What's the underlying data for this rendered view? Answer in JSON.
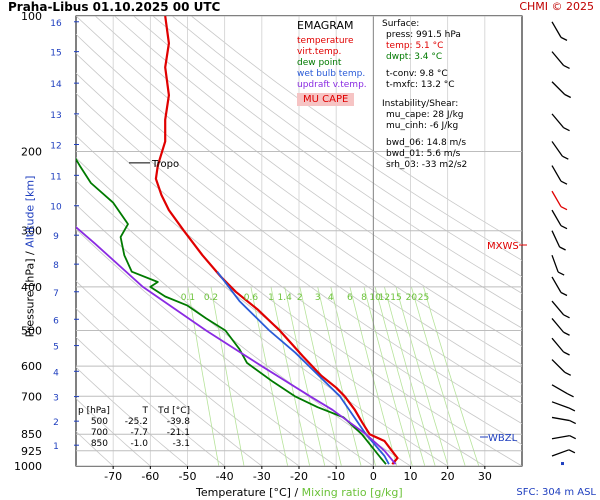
{
  "header": {
    "title": "Praha-Libus    01.10.2025 00 UTC",
    "credit": "CHMI © 2025"
  },
  "legend": {
    "title": "EMAGRAM",
    "items": [
      {
        "label": "temperature",
        "color": "#e00000"
      },
      {
        "label": "virt.temp.",
        "color": "#e00000"
      },
      {
        "label": "dew point",
        "color": "#007a00"
      },
      {
        "label": "wet bulb temp.",
        "color": "#2a5bd7"
      },
      {
        "label": "updraft v.temp.",
        "color": "#8a2be2"
      }
    ],
    "button": "MU CAPE"
  },
  "surface_info": {
    "heading": "Surface:",
    "press": "press: 991.5 hPa",
    "temp": "temp: 5.1 °C",
    "dwpt": "dwpt: 3.4 °C",
    "tconv": "t-conv: 9.8 °C",
    "tmxfc": "t-mxfc: 13.2 °C",
    "instab_heading": "Instability/Shear:",
    "mu_cape": "mu_cape: 28 J/kg",
    "mu_cinh": "mu_cinh: -6 J/kg",
    "bwd_06": "bwd_06: 14.8 m/s",
    "bwd_01": "bwd_01: 5.6 m/s",
    "srh_03": "srh_03: -33 m2/s2"
  },
  "table": {
    "header": [
      "p [hPa]",
      "T",
      "Td [°C]"
    ],
    "rows": [
      [
        "500",
        "-25.2",
        "-39.8"
      ],
      [
        "700",
        "-7.7",
        "-21.1"
      ],
      [
        "850",
        "-1.0",
        "-3.1"
      ]
    ]
  },
  "annotations": {
    "tropo": "Tropo",
    "mxws": "MXWS",
    "wbzl": "WBZL",
    "sfc": "SFC: 304 m ASL"
  },
  "axes": {
    "xlabel_temp": "Temperature [°C]",
    "xlabel_sep": " / ",
    "xlabel_mix": "Mixing ratio [g/kg]",
    "ylabel_p": "Pressure [hPa]",
    "ylabel_sep": " / ",
    "ylabel_alt": "Altitude [km]"
  },
  "chart_data": {
    "type": "line",
    "xlim": [
      -80,
      40
    ],
    "ylim_pressure": [
      1000,
      100
    ],
    "y_scale": "log",
    "x_ticks": [
      -70,
      -60,
      -50,
      -40,
      -30,
      -20,
      -10,
      0,
      10,
      20,
      30
    ],
    "pressure_ticks": [
      100,
      200,
      300,
      400,
      500,
      600,
      700,
      850,
      925,
      1000
    ],
    "altitude_ticks_km": [
      1,
      2,
      3,
      4,
      5,
      6,
      7,
      8,
      9,
      10,
      11,
      12,
      13,
      14,
      15,
      16
    ],
    "mixing_ratio_labels": [
      "0.1",
      "0.2",
      "0.6",
      "1",
      "1.4",
      "2",
      "3",
      "4",
      "6",
      "8",
      "10",
      "12",
      "15",
      "20",
      "25"
    ],
    "grid": true,
    "series": [
      {
        "name": "temperature",
        "color": "#e00000",
        "points": [
          [
            5.1,
            991
          ],
          [
            6.5,
            960
          ],
          [
            5,
            925
          ],
          [
            3,
            880
          ],
          [
            -1,
            850
          ],
          [
            -3,
            800
          ],
          [
            -5,
            750
          ],
          [
            -7.7,
            700
          ],
          [
            -10,
            670
          ],
          [
            -14,
            630
          ],
          [
            -19,
            570
          ],
          [
            -25.2,
            500
          ],
          [
            -31,
            450
          ],
          [
            -37,
            410
          ],
          [
            -41,
            380
          ],
          [
            -46,
            340
          ],
          [
            -51,
            300
          ],
          [
            -55,
            270
          ],
          [
            -57,
            250
          ],
          [
            -58.5,
            230
          ],
          [
            -58,
            215
          ],
          [
            -56,
            190
          ],
          [
            -56,
            170
          ],
          [
            -55,
            150
          ],
          [
            -56,
            130
          ],
          [
            -55,
            115
          ],
          [
            -56,
            100
          ]
        ]
      },
      {
        "name": "dew point",
        "color": "#007a00",
        "points": [
          [
            3.4,
            991
          ],
          [
            2,
            960
          ],
          [
            -3.1,
            850
          ],
          [
            -8,
            780
          ],
          [
            -15,
            740
          ],
          [
            -21.1,
            700
          ],
          [
            -27,
            650
          ],
          [
            -34,
            590
          ],
          [
            -36,
            550
          ],
          [
            -39.8,
            500
          ],
          [
            -45,
            470
          ],
          [
            -50,
            440
          ],
          [
            -56,
            420
          ],
          [
            -60,
            400
          ],
          [
            -58,
            390
          ],
          [
            -65,
            370
          ],
          [
            -67,
            340
          ],
          [
            -68,
            310
          ],
          [
            -66,
            290
          ],
          [
            -70,
            260
          ],
          [
            -76,
            235
          ],
          [
            -79,
            215
          ],
          [
            -82,
            195
          ],
          [
            -85,
            180
          ]
        ]
      },
      {
        "name": "wet bulb temp.",
        "color": "#2a5bd7",
        "points": [
          [
            4.2,
            991
          ],
          [
            3,
            950
          ],
          [
            -2,
            850
          ],
          [
            -9,
            700
          ],
          [
            -21,
            560
          ],
          [
            -28,
            500
          ],
          [
            -36,
            430
          ],
          [
            -42,
            370
          ]
        ]
      },
      {
        "name": "updraft v.temp.",
        "color": "#8a2be2",
        "points": [
          [
            6,
            991
          ],
          [
            3,
            925
          ],
          [
            -2,
            850
          ],
          [
            -11,
            750
          ],
          [
            -17,
            700
          ],
          [
            -30,
            600
          ],
          [
            -45,
            500
          ],
          [
            -62,
            400
          ],
          [
            -75,
            320
          ],
          [
            -90,
            250
          ]
        ]
      }
    ]
  }
}
